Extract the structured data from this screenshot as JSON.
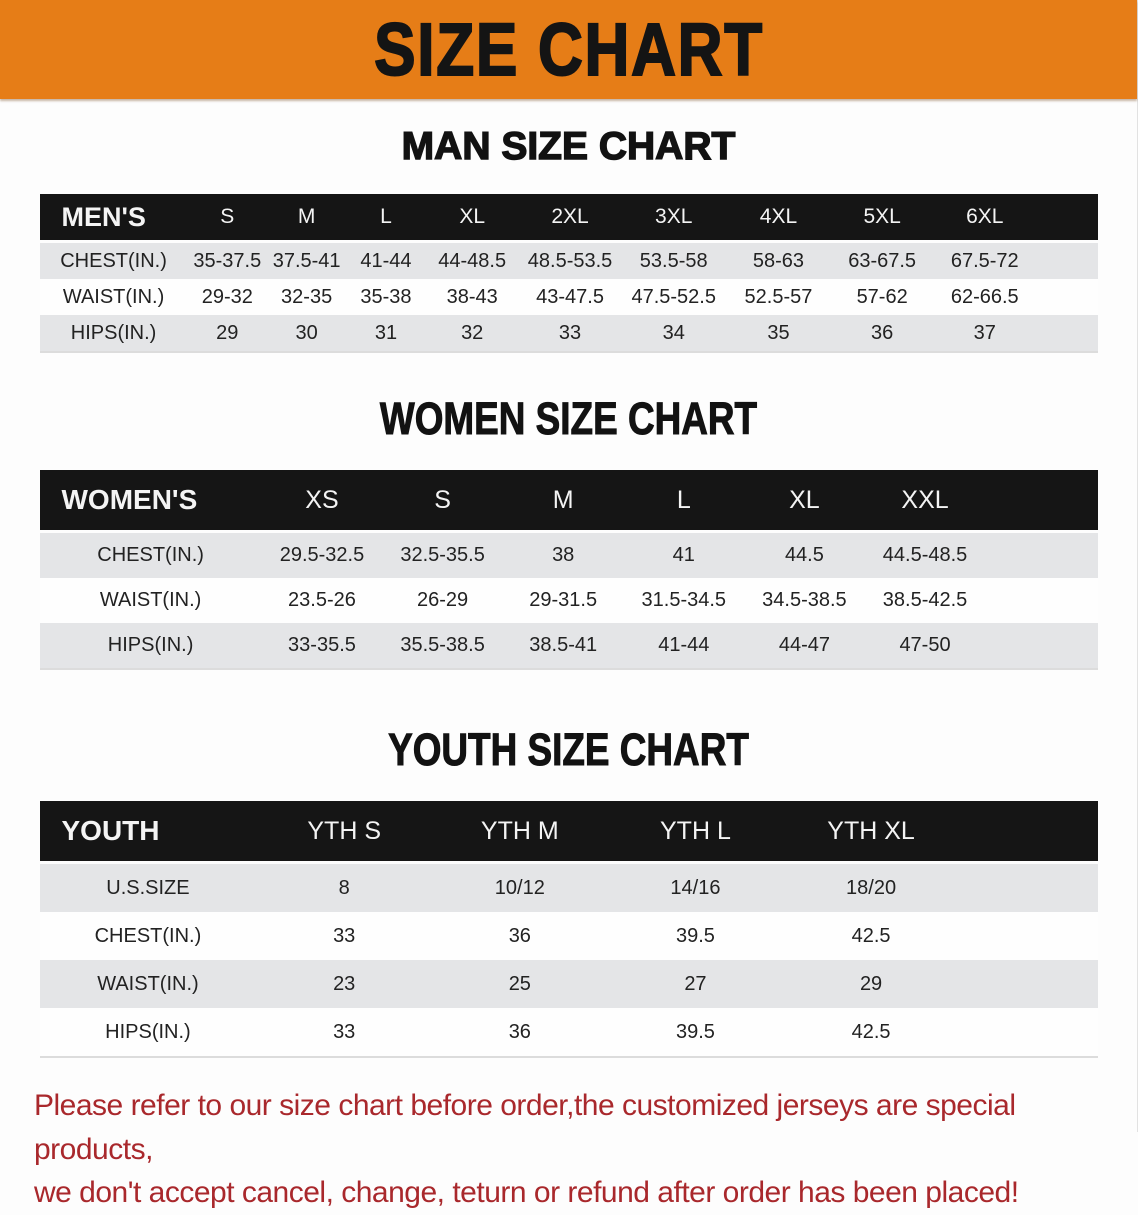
{
  "banner": {
    "title": "SIZE CHART"
  },
  "sections": [
    {
      "heading": "MAN SIZE CHART",
      "table": {
        "header": [
          "MEN'S",
          "S",
          "M",
          "L",
          "XL",
          "2XL",
          "3XL",
          "4XL",
          "5XL",
          "6XL"
        ],
        "rows": [
          [
            "CHEST(IN.)",
            "35-37.5",
            "37.5-41",
            "41-44",
            "44-48.5",
            "48.5-53.5",
            "53.5-58",
            "58-63",
            "63-67.5",
            "67.5-72"
          ],
          [
            "WAIST(IN.)",
            "29-32",
            "32-35",
            "35-38",
            "38-43",
            "43-47.5",
            "47.5-52.5",
            "52.5-57",
            "57-62",
            "62-66.5"
          ],
          [
            "HIPS(IN.)",
            "29",
            "30",
            "31",
            "32",
            "33",
            "34",
            "35",
            "36",
            "37"
          ]
        ]
      }
    },
    {
      "heading": "WOMEN SIZE CHART",
      "table": {
        "header": [
          "WOMEN'S",
          "XS",
          "S",
          "M",
          "L",
          "XL",
          "XXL"
        ],
        "rows": [
          [
            "CHEST(IN.)",
            "29.5-32.5",
            "32.5-35.5",
            "38",
            "41",
            "44.5",
            "44.5-48.5"
          ],
          [
            "WAIST(IN.)",
            "23.5-26",
            "26-29",
            "29-31.5",
            "31.5-34.5",
            "34.5-38.5",
            "38.5-42.5"
          ],
          [
            "HIPS(IN.)",
            "33-35.5",
            "35.5-38.5",
            "38.5-41",
            "41-44",
            "44-47",
            "47-50"
          ]
        ]
      }
    },
    {
      "heading": "YOUTH SIZE CHART",
      "table": {
        "header": [
          "YOUTH",
          "YTH S",
          "YTH M",
          "YTH L",
          "YTH XL"
        ],
        "rows": [
          [
            "U.S.SIZE",
            "8",
            "10/12",
            "14/16",
            "18/20"
          ],
          [
            "CHEST(IN.)",
            "33",
            "36",
            "39.5",
            "42.5"
          ],
          [
            "WAIST(IN.)",
            "23",
            "25",
            "27",
            "29"
          ],
          [
            "HIPS(IN.)",
            "33",
            "36",
            "39.5",
            "42.5"
          ]
        ]
      }
    }
  ],
  "disclaimer": {
    "line1": "Please refer to our size chart before order,the customized jerseys are special products,",
    "line2": "we don't accept cancel, change, teturn or refund after order has been placed!"
  },
  "colors": {
    "banner_bg": "#E67D17",
    "table_header_bg": "#151515",
    "row_stripe_gray": "#E4E5E7",
    "disclaimer_red": "#A9282C"
  }
}
